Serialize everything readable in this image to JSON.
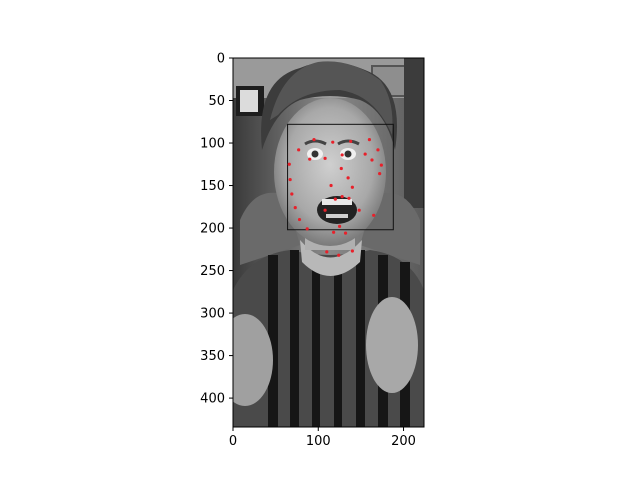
{
  "chart_data": {
    "type": "scatter",
    "description_free": true,
    "image_extent": {
      "width": 224,
      "height": 434
    },
    "xlim": [
      0,
      224
    ],
    "ylim": [
      434,
      0
    ],
    "x_ticks": [
      0,
      100,
      200
    ],
    "y_ticks": [
      0,
      50,
      100,
      150,
      200,
      250,
      300,
      350,
      400
    ],
    "bounding_box": {
      "x0": 64,
      "y0": 78,
      "x1": 188,
      "y1": 202
    },
    "landmark_color": "#e8202a",
    "box_color": "#111111",
    "points": [
      {
        "x": 66,
        "y": 125
      },
      {
        "x": 67,
        "y": 143
      },
      {
        "x": 69,
        "y": 160
      },
      {
        "x": 73,
        "y": 176
      },
      {
        "x": 78,
        "y": 190
      },
      {
        "x": 87,
        "y": 201
      },
      {
        "x": 95,
        "y": 96
      },
      {
        "x": 117,
        "y": 99
      },
      {
        "x": 138,
        "y": 98
      },
      {
        "x": 160,
        "y": 96
      },
      {
        "x": 77,
        "y": 108
      },
      {
        "x": 170,
        "y": 108
      },
      {
        "x": 90,
        "y": 119
      },
      {
        "x": 108,
        "y": 118
      },
      {
        "x": 128,
        "y": 114
      },
      {
        "x": 155,
        "y": 113
      },
      {
        "x": 163,
        "y": 120
      },
      {
        "x": 172,
        "y": 136
      },
      {
        "x": 174,
        "y": 126
      },
      {
        "x": 127,
        "y": 130
      },
      {
        "x": 135,
        "y": 141
      },
      {
        "x": 115,
        "y": 150
      },
      {
        "x": 140,
        "y": 152
      },
      {
        "x": 108,
        "y": 179
      },
      {
        "x": 120,
        "y": 166
      },
      {
        "x": 128,
        "y": 163
      },
      {
        "x": 136,
        "y": 165
      },
      {
        "x": 148,
        "y": 179
      },
      {
        "x": 125,
        "y": 198
      },
      {
        "x": 118,
        "y": 205
      },
      {
        "x": 132,
        "y": 206
      },
      {
        "x": 165,
        "y": 185
      },
      {
        "x": 110,
        "y": 228
      },
      {
        "x": 124,
        "y": 232
      },
      {
        "x": 140,
        "y": 227
      }
    ]
  }
}
